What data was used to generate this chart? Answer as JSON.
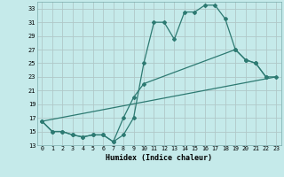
{
  "xlabel": "Humidex (Indice chaleur)",
  "background_color": "#c5eaea",
  "grid_color": "#b0c8c8",
  "line_color": "#2d7a72",
  "xlim": [
    -0.5,
    23.5
  ],
  "ylim": [
    13,
    34
  ],
  "yticks": [
    13,
    15,
    17,
    19,
    21,
    23,
    25,
    27,
    29,
    31,
    33
  ],
  "xticks": [
    0,
    1,
    2,
    3,
    4,
    5,
    6,
    7,
    8,
    9,
    10,
    11,
    12,
    13,
    14,
    15,
    16,
    17,
    18,
    19,
    20,
    21,
    22,
    23
  ],
  "curve1_x": [
    0,
    1,
    2,
    3,
    4,
    5,
    6,
    7,
    8,
    9,
    10,
    11,
    12,
    13,
    14,
    15,
    16,
    17,
    18,
    19,
    20,
    21,
    22
  ],
  "curve1_y": [
    16.5,
    15.0,
    15.0,
    14.5,
    14.2,
    14.5,
    14.5,
    13.5,
    14.5,
    17.0,
    25.0,
    31.0,
    31.0,
    28.5,
    32.5,
    32.5,
    33.5,
    33.5,
    31.5,
    27.0,
    25.5,
    25.0,
    23.0
  ],
  "curve2_x": [
    0,
    1,
    2,
    3,
    4,
    5,
    6,
    7,
    8,
    9,
    10,
    19,
    20,
    21,
    22,
    23
  ],
  "curve2_y": [
    16.5,
    15.0,
    15.0,
    14.5,
    14.2,
    14.5,
    14.5,
    13.5,
    17.0,
    20.0,
    22.0,
    27.0,
    25.5,
    25.0,
    23.0,
    23.0
  ],
  "curve3_x": [
    0,
    23
  ],
  "curve3_y": [
    16.5,
    23.0
  ]
}
